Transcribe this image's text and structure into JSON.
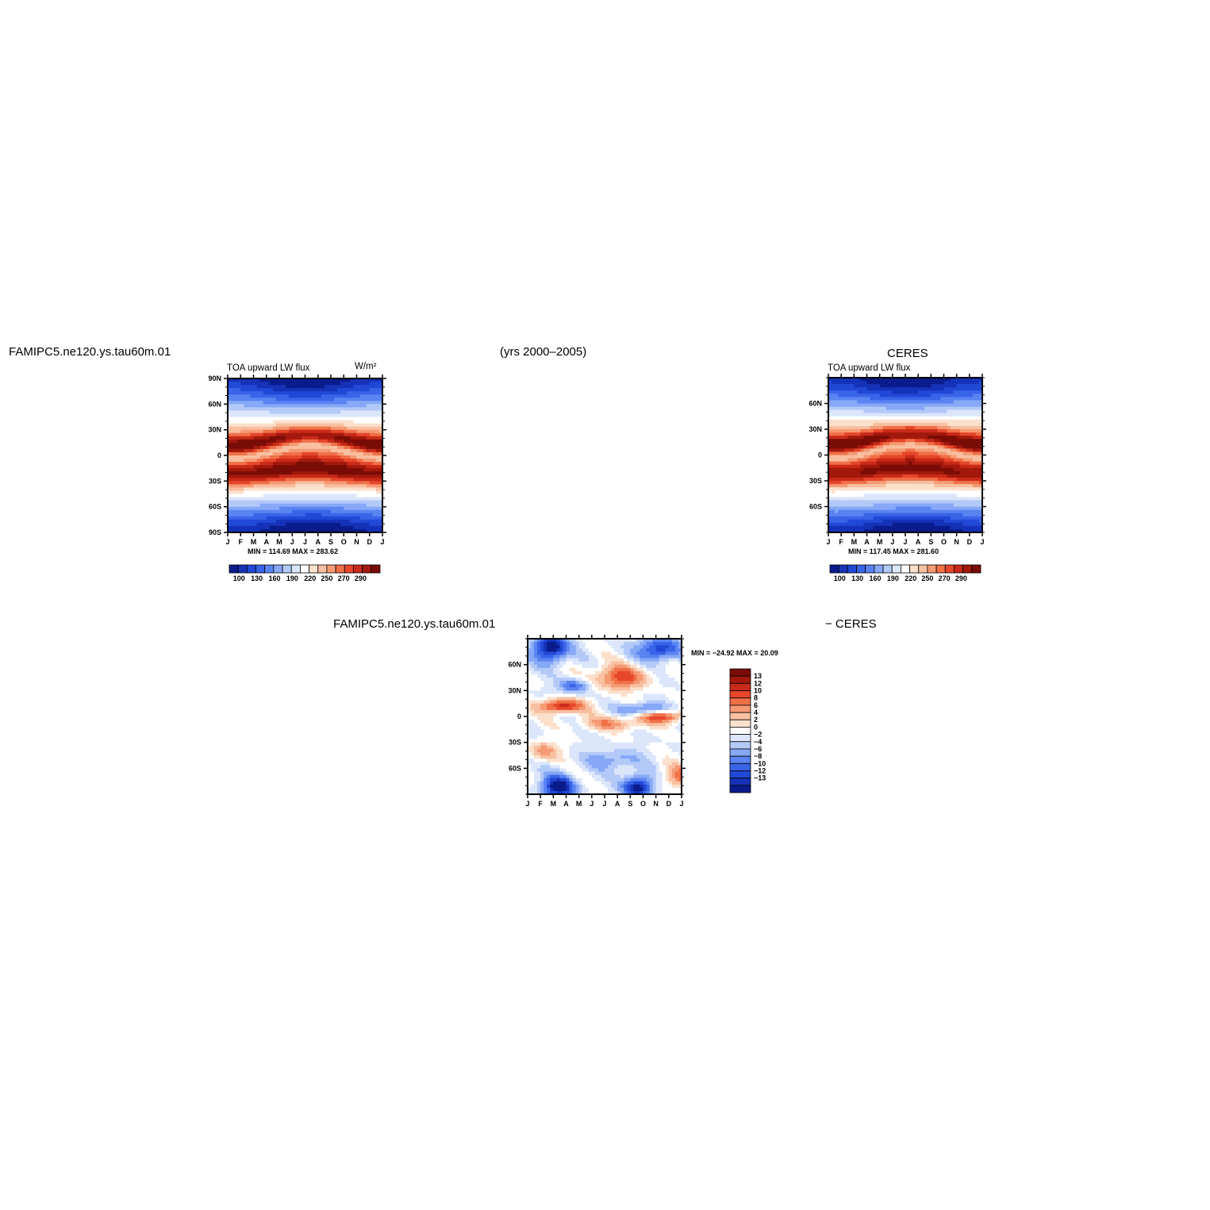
{
  "header": {
    "case_name": "FAMIPC5.ne120.ys.tau60m.01",
    "years": "(yrs 2000–2005)",
    "obs_name": "CERES",
    "diff_case": "FAMIPC5.ne120.ys.tau60m.01",
    "diff_obs": "− CERES"
  },
  "palette_abs": [
    "#0a1c8c",
    "#1532b8",
    "#2148d6",
    "#3a64e8",
    "#5a84f2",
    "#86a8f6",
    "#b3c9f8",
    "#dbe6fb",
    "#ffffff",
    "#fbe0cc",
    "#f8bfa0",
    "#f59a74",
    "#f07048",
    "#e6462a",
    "#c92a18",
    "#a2180c",
    "#7a0c06"
  ],
  "palette_diff": [
    "#7a0c06",
    "#a2180c",
    "#c92a18",
    "#e6462a",
    "#f07048",
    "#f59a74",
    "#f8bfa0",
    "#fbe0cc",
    "#ffffff",
    "#dbe6fb",
    "#b3c9f8",
    "#86a8f6",
    "#5a84f2",
    "#3a64e8",
    "#2148d6",
    "#1532b8",
    "#0a1c8c"
  ],
  "chart_data": [
    {
      "type": "heatmap",
      "title": "TOA upward LW flux",
      "units": "W/m²",
      "x_tick_labels": [
        "J",
        "F",
        "M",
        "A",
        "M",
        "J",
        "J",
        "A",
        "S",
        "O",
        "N",
        "D",
        "J"
      ],
      "y_tick_labels": [
        "90N",
        "60N",
        "30N",
        "0",
        "30S",
        "60S",
        "90S"
      ],
      "stats": "MIN = 114.69  MAX = 283.62",
      "min": 114.69,
      "max": 283.62,
      "colorbar_labels": [
        "100",
        "130",
        "160",
        "190",
        "220",
        "250",
        "270",
        "290"
      ]
    },
    {
      "type": "heatmap",
      "title": "TOA upward LW flux",
      "x_tick_labels": [
        "J",
        "F",
        "M",
        "A",
        "M",
        "J",
        "J",
        "A",
        "S",
        "O",
        "N",
        "D",
        "J"
      ],
      "y_tick_labels": [
        "60N",
        "30N",
        "0",
        "30S",
        "60S"
      ],
      "stats": "MIN = 117.45  MAX = 281.60",
      "min": 117.45,
      "max": 281.6,
      "colorbar_labels": [
        "100",
        "130",
        "160",
        "190",
        "220",
        "250",
        "270",
        "290"
      ]
    },
    {
      "type": "heatmap",
      "x_tick_labels": [
        "J",
        "F",
        "M",
        "A",
        "M",
        "J",
        "J",
        "A",
        "S",
        "O",
        "N",
        "D",
        "J"
      ],
      "y_tick_labels": [
        "60N",
        "30N",
        "0",
        "30S",
        "60S"
      ],
      "stats": "MIN = −24.92  MAX =   20.09",
      "min": -24.92,
      "max": 20.09,
      "colorbar_labels": [
        "13",
        "12",
        "10",
        "8",
        "6",
        "4",
        "2",
        "0",
        "−2",
        "−4",
        "−6",
        "−8",
        "−10",
        "−12",
        "−13"
      ]
    }
  ]
}
